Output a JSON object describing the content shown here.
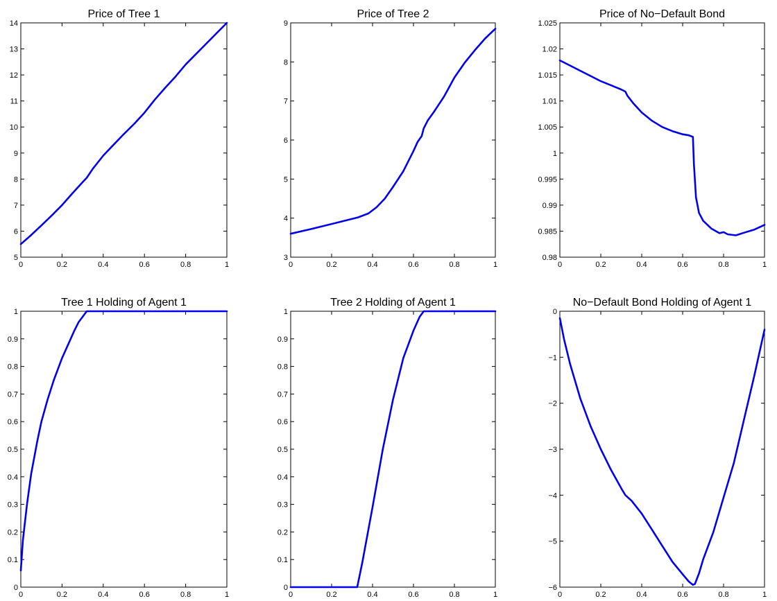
{
  "chart_data": [
    {
      "type": "line",
      "title": "Price of Tree 1",
      "xlabel": "",
      "ylabel": "",
      "xlim": [
        0,
        1
      ],
      "ylim": [
        5,
        14
      ],
      "xticks": [
        "0",
        "0.2",
        "0.4",
        "0.6",
        "0.8",
        "1"
      ],
      "yticks": [
        "5",
        "6",
        "7",
        "8",
        "9",
        "10",
        "11",
        "12",
        "13",
        "14"
      ],
      "grid": false,
      "series": [
        {
          "color": "#0000ee",
          "x": [
            0,
            0.05,
            0.1,
            0.15,
            0.2,
            0.25,
            0.3,
            0.32,
            0.35,
            0.4,
            0.45,
            0.5,
            0.55,
            0.6,
            0.65,
            0.7,
            0.75,
            0.8,
            0.85,
            0.9,
            0.95,
            1.0
          ],
          "y": [
            5.5,
            5.85,
            6.22,
            6.6,
            7.0,
            7.45,
            7.88,
            8.05,
            8.4,
            8.9,
            9.32,
            9.73,
            10.12,
            10.55,
            11.05,
            11.5,
            11.93,
            12.4,
            12.8,
            13.2,
            13.6,
            14.0
          ]
        }
      ]
    },
    {
      "type": "line",
      "title": "Price of Tree 2",
      "xlabel": "",
      "ylabel": "",
      "xlim": [
        0,
        1
      ],
      "ylim": [
        3,
        9
      ],
      "xticks": [
        "0",
        "0.2",
        "0.4",
        "0.6",
        "0.8",
        "1"
      ],
      "yticks": [
        "3",
        "4",
        "5",
        "6",
        "7",
        "8",
        "9"
      ],
      "grid": false,
      "series": [
        {
          "color": "#0000ee",
          "x": [
            0,
            0.1,
            0.2,
            0.3,
            0.33,
            0.38,
            0.42,
            0.46,
            0.5,
            0.55,
            0.6,
            0.62,
            0.64,
            0.65,
            0.67,
            0.7,
            0.75,
            0.8,
            0.85,
            0.9,
            0.95,
            1.0
          ],
          "y": [
            3.6,
            3.72,
            3.85,
            3.98,
            4.02,
            4.12,
            4.28,
            4.5,
            4.8,
            5.2,
            5.72,
            5.95,
            6.1,
            6.3,
            6.5,
            6.72,
            7.12,
            7.6,
            7.98,
            8.3,
            8.6,
            8.85
          ]
        }
      ]
    },
    {
      "type": "line",
      "title": "Price of No−Default Bond",
      "xlabel": "",
      "ylabel": "",
      "xlim": [
        0,
        1
      ],
      "ylim": [
        0.98,
        1.025
      ],
      "xticks": [
        "0",
        "0.2",
        "0.4",
        "0.6",
        "0.8",
        "1"
      ],
      "yticks": [
        "0.98",
        "0.985",
        "0.99",
        "0.995",
        "1",
        "1.005",
        "1.01",
        "1.015",
        "1.02",
        "1.025"
      ],
      "grid": false,
      "series": [
        {
          "color": "#0000ee",
          "x": [
            0,
            0.05,
            0.1,
            0.15,
            0.2,
            0.25,
            0.3,
            0.32,
            0.33,
            0.36,
            0.4,
            0.45,
            0.5,
            0.55,
            0.6,
            0.63,
            0.65,
            0.655,
            0.665,
            0.68,
            0.7,
            0.74,
            0.78,
            0.8,
            0.82,
            0.86,
            0.9,
            0.95,
            1.0
          ],
          "y": [
            1.0178,
            1.0168,
            1.0158,
            1.0148,
            1.0138,
            1.013,
            1.0122,
            1.0118,
            1.011,
            1.0095,
            1.0078,
            1.0062,
            1.005,
            1.0042,
            1.0036,
            1.0034,
            1.0031,
            0.998,
            0.9915,
            0.9885,
            0.987,
            0.9855,
            0.9846,
            0.9848,
            0.9844,
            0.9842,
            0.9847,
            0.9853,
            0.9862
          ]
        }
      ]
    },
    {
      "type": "line",
      "title": "Tree 1 Holding of Agent 1",
      "xlabel": "",
      "ylabel": "",
      "xlim": [
        0,
        1
      ],
      "ylim": [
        0,
        1
      ],
      "xticks": [
        "0",
        "0.2",
        "0.4",
        "0.6",
        "0.8",
        "1"
      ],
      "yticks": [
        "0",
        "0.1",
        "0.2",
        "0.3",
        "0.4",
        "0.5",
        "0.6",
        "0.7",
        "0.8",
        "0.9",
        "1"
      ],
      "grid": false,
      "series": [
        {
          "color": "#0000ee",
          "x": [
            0,
            0.01,
            0.03,
            0.05,
            0.08,
            0.1,
            0.13,
            0.16,
            0.2,
            0.23,
            0.26,
            0.28,
            0.3,
            0.32,
            0.4,
            0.5,
            0.6,
            0.7,
            0.8,
            0.9,
            1.0
          ],
          "y": [
            0.06,
            0.17,
            0.3,
            0.41,
            0.53,
            0.6,
            0.68,
            0.75,
            0.83,
            0.88,
            0.93,
            0.96,
            0.98,
            1.0,
            1.0,
            1.0,
            1.0,
            1.0,
            1.0,
            1.0,
            1.0
          ]
        }
      ]
    },
    {
      "type": "line",
      "title": "Tree 2 Holding of Agent 1",
      "xlabel": "",
      "ylabel": "",
      "xlim": [
        0,
        1
      ],
      "ylim": [
        0,
        1
      ],
      "xticks": [
        "0",
        "0.2",
        "0.4",
        "0.6",
        "0.8",
        "1"
      ],
      "yticks": [
        "0",
        "0.1",
        "0.2",
        "0.3",
        "0.4",
        "0.5",
        "0.6",
        "0.7",
        "0.8",
        "0.9",
        "1"
      ],
      "grid": false,
      "series": [
        {
          "color": "#0000ee",
          "x": [
            0,
            0.1,
            0.2,
            0.3,
            0.325,
            0.35,
            0.4,
            0.45,
            0.5,
            0.55,
            0.6,
            0.63,
            0.65,
            0.7,
            0.8,
            0.9,
            1.0
          ],
          "y": [
            0,
            0,
            0,
            0,
            0,
            0.09,
            0.29,
            0.5,
            0.68,
            0.83,
            0.93,
            0.98,
            1.0,
            1.0,
            1.0,
            1.0,
            1.0
          ]
        }
      ]
    },
    {
      "type": "line",
      "title": "No−Default Bond Holding of Agent 1",
      "xlabel": "",
      "ylabel": "",
      "xlim": [
        0,
        1
      ],
      "ylim": [
        -6,
        0
      ],
      "xticks": [
        "0",
        "0.2",
        "0.4",
        "0.6",
        "0.8",
        "1"
      ],
      "yticks": [
        "−6",
        "−5",
        "−4",
        "−3",
        "−2",
        "−1",
        "0"
      ],
      "grid": false,
      "series": [
        {
          "color": "#0000ee",
          "x": [
            0,
            0.02,
            0.05,
            0.1,
            0.15,
            0.2,
            0.25,
            0.3,
            0.32,
            0.35,
            0.4,
            0.45,
            0.5,
            0.55,
            0.6,
            0.63,
            0.65,
            0.66,
            0.68,
            0.7,
            0.75,
            0.8,
            0.85,
            0.9,
            0.95,
            1.0
          ],
          "y": [
            -0.15,
            -0.6,
            -1.15,
            -1.9,
            -2.5,
            -3.0,
            -3.45,
            -3.85,
            -4.0,
            -4.12,
            -4.4,
            -4.75,
            -5.1,
            -5.45,
            -5.72,
            -5.88,
            -5.95,
            -5.93,
            -5.7,
            -5.4,
            -4.8,
            -4.05,
            -3.3,
            -2.35,
            -1.4,
            -0.4
          ]
        }
      ]
    }
  ]
}
